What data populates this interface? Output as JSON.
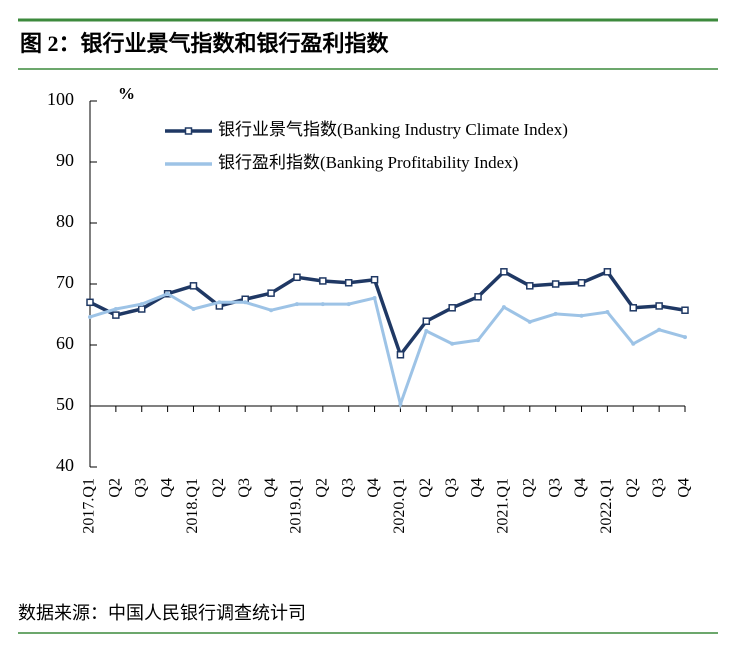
{
  "chart_data": {
    "type": "line",
    "title": "图 2：银行业景气指数和银行盈利指数",
    "source": "数据来源：中国人民银行调查统计司",
    "y_label": "%",
    "categories": [
      "2017.Q1",
      "Q2",
      "Q3",
      "Q4",
      "2018.Q1",
      "Q2",
      "Q3",
      "Q4",
      "2019.Q1",
      "Q2",
      "Q3",
      "Q4",
      "2020.Q1",
      "Q2",
      "Q3",
      "Q4",
      "2021.Q1",
      "Q2",
      "Q3",
      "Q4",
      "2022.Q1",
      "Q2",
      "Q3",
      "Q4"
    ],
    "series": [
      {
        "name": "银行业景气指数(Banking Industry Climate Index)",
        "color": "#1f3864",
        "values": [
          67.0,
          64.9,
          65.9,
          68.4,
          69.7,
          66.4,
          67.5,
          68.5,
          71.1,
          70.5,
          70.2,
          70.7,
          58.4,
          63.9,
          66.1,
          67.9,
          72.0,
          69.7,
          70.0,
          70.2,
          72.0,
          66.1,
          66.4,
          65.7
        ]
      },
      {
        "name": "银行盈利指数(Banking Profitability Index)",
        "color": "#9dc3e6",
        "values": [
          64.6,
          65.9,
          66.7,
          68.4,
          65.9,
          67.0,
          67.0,
          65.7,
          66.7,
          66.7,
          66.7,
          67.7,
          50.3,
          62.3,
          60.2,
          60.8,
          66.2,
          63.8,
          65.1,
          64.8,
          65.4,
          60.2,
          62.5,
          61.3
        ]
      }
    ],
    "ylim": [
      40,
      100
    ],
    "yticks": [
      40,
      50,
      60,
      70,
      80,
      90,
      100
    ],
    "x_axis_at": 50
  }
}
